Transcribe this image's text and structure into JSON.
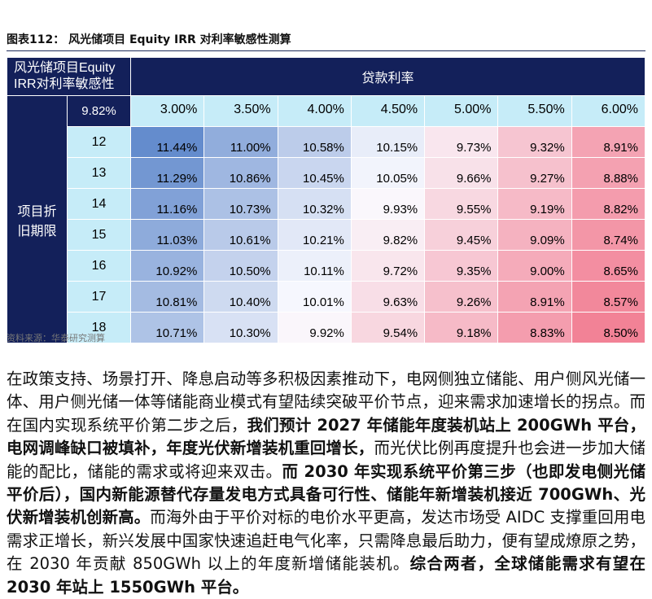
{
  "header": {
    "title": "图表112：  风光储项目 Equity IRR 对利率敏感性测算"
  },
  "table": {
    "corner": "风光储项目Equity IRR对利率敏感性",
    "column_group": "贷款利率",
    "base": "9.82%",
    "row_group": "项目折旧期限",
    "columns": [
      "3.00%",
      "3.50%",
      "4.00%",
      "4.50%",
      "5.00%",
      "5.50%",
      "6.00%"
    ],
    "rows": [
      {
        "label": "12",
        "values": [
          "11.44%",
          "11.00%",
          "10.58%",
          "10.15%",
          "9.73%",
          "9.32%",
          "8.91%"
        ]
      },
      {
        "label": "13",
        "values": [
          "11.29%",
          "10.86%",
          "10.45%",
          "10.05%",
          "9.66%",
          "9.27%",
          "8.88%"
        ]
      },
      {
        "label": "14",
        "values": [
          "11.16%",
          "10.73%",
          "10.32%",
          "9.93%",
          "9.55%",
          "9.19%",
          "8.82%"
        ]
      },
      {
        "label": "15",
        "values": [
          "11.03%",
          "10.61%",
          "10.21%",
          "9.82%",
          "9.45%",
          "9.09%",
          "8.74%"
        ]
      },
      {
        "label": "16",
        "values": [
          "10.92%",
          "10.50%",
          "10.11%",
          "9.72%",
          "9.35%",
          "9.00%",
          "8.65%"
        ]
      },
      {
        "label": "17",
        "values": [
          "10.81%",
          "10.40%",
          "10.01%",
          "9.63%",
          "9.26%",
          "8.91%",
          "8.57%"
        ]
      },
      {
        "label": "18",
        "values": [
          "10.71%",
          "10.30%",
          "9.92%",
          "9.54%",
          "9.18%",
          "8.83%",
          "8.50%"
        ]
      }
    ]
  },
  "source": "资料来源：华泰研究测算",
  "paragraph": [
    {
      "text": "在政策支持、场景打开、降息启动等多积极因素推动下，电网侧独立储能、用户侧风光储一体、用户侧光储一体等储能商业模式有望陆续突破平价节点，迎来需求加速增长的拐点。而在国内实现系统平价第二步之后，",
      "bold": false
    },
    {
      "text": "我们预计 2027 年储能年度装机站上 200GWh 平台，电网调峰缺口被填补，年度光伏新增装机重回增长，",
      "bold": true
    },
    {
      "text": "而光伏比例再度提升也会进一步加大储能的配比，储能的需求或将迎来双击。",
      "bold": false
    },
    {
      "text": "而 2030 年实现系统平价第三步（也即发电侧光储平价后），国内新能源替代存量发电方式具备可行性、储能年新增装机接近 700GWh、光伏新增装机创新高。",
      "bold": true
    },
    {
      "text": "而海外由于平价对标的电价水平更高，发达市场受 AIDC 支撑重回用电需求正增长，新兴发展中国家快速追赶电气化率，只需降息最后助力，便有望成燎原之势，在 2030 年贡献 850GWh 以上的年度新增储能装机。",
      "bold": false
    },
    {
      "text": "综合两者，全球储能需求有望在 2030 年站上 1550GWh 平台。",
      "bold": true
    }
  ]
}
